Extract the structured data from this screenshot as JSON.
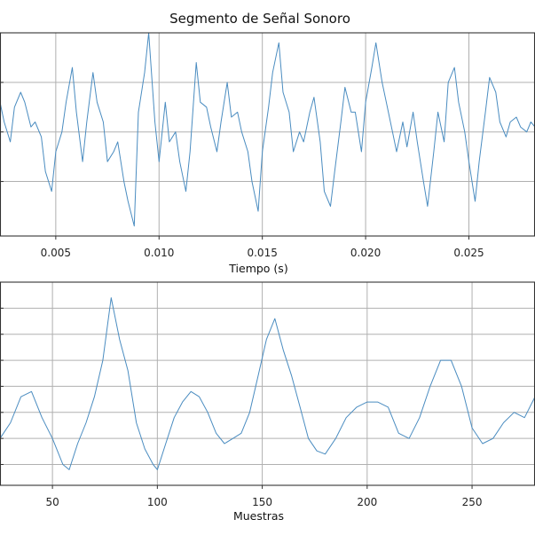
{
  "figure": {
    "title": "Segmento de Señal Sonoro",
    "accent_color": "#4a8cc0"
  },
  "chart_data": [
    {
      "type": "line",
      "title": "Segmento de Señal Sonoro",
      "xlabel": "Tiempo (s)",
      "ylabel": "",
      "xlim": [
        0.0023,
        0.0282
      ],
      "ylim": [
        -1.05,
        1.0
      ],
      "xticks": [
        0.005,
        0.01,
        0.015,
        0.02,
        0.025
      ],
      "xtick_labels": [
        "0.005",
        "0.010",
        "0.015",
        "0.020",
        "0.025"
      ],
      "yticks": [
        -0.5,
        0.0,
        0.5
      ],
      "grid": true,
      "series": [
        {
          "color": "#4a8cc0",
          "x": [
            0.0023,
            0.0025,
            0.0028,
            0.003,
            0.0033,
            0.0035,
            0.0038,
            0.004,
            0.0043,
            0.0045,
            0.0048,
            0.005,
            0.0053,
            0.0055,
            0.0058,
            0.006,
            0.0063,
            0.0065,
            0.0068,
            0.007,
            0.0073,
            0.0075,
            0.0078,
            0.008,
            0.0083,
            0.0085,
            0.0088,
            0.009,
            0.0093,
            0.0095,
            0.0098,
            0.01,
            0.0103,
            0.0105,
            0.0108,
            0.011,
            0.0113,
            0.0115,
            0.0118,
            0.012,
            0.0123,
            0.0125,
            0.0128,
            0.013,
            0.0133,
            0.0135,
            0.0138,
            0.014,
            0.0143,
            0.0145,
            0.0148,
            0.015,
            0.0153,
            0.0155,
            0.0158,
            0.016,
            0.0163,
            0.0165,
            0.0168,
            0.017,
            0.0173,
            0.0175,
            0.0178,
            0.018,
            0.0183,
            0.0185,
            0.0188,
            0.019,
            0.0193,
            0.0195,
            0.0198,
            0.02,
            0.0203,
            0.0205,
            0.0208,
            0.021,
            0.0213,
            0.0215,
            0.0218,
            0.022,
            0.0223,
            0.0225,
            0.0228,
            0.023,
            0.0233,
            0.0235,
            0.0238,
            0.024,
            0.0243,
            0.0245,
            0.0248,
            0.025,
            0.0253,
            0.0255,
            0.0258,
            0.026,
            0.0263,
            0.0265,
            0.0268,
            0.027,
            0.0273,
            0.0275,
            0.0278,
            0.028,
            0.0282
          ],
          "y": [
            0.3,
            0.1,
            -0.1,
            0.25,
            0.4,
            0.3,
            0.05,
            0.1,
            -0.05,
            -0.4,
            -0.6,
            -0.2,
            0.0,
            0.3,
            0.65,
            0.2,
            -0.3,
            0.1,
            0.6,
            0.3,
            0.1,
            -0.3,
            -0.2,
            -0.1,
            -0.5,
            -0.7,
            -0.95,
            0.2,
            0.6,
            1.0,
            0.1,
            -0.3,
            0.3,
            -0.1,
            0.0,
            -0.3,
            -0.6,
            -0.2,
            0.7,
            0.3,
            0.25,
            0.05,
            -0.2,
            0.1,
            0.5,
            0.15,
            0.2,
            0.0,
            -0.2,
            -0.5,
            -0.8,
            -0.2,
            0.25,
            0.6,
            0.9,
            0.4,
            0.2,
            -0.2,
            0.0,
            -0.1,
            0.2,
            0.35,
            -0.1,
            -0.6,
            -0.75,
            -0.4,
            0.1,
            0.45,
            0.2,
            0.2,
            -0.2,
            0.3,
            0.65,
            0.9,
            0.5,
            0.3,
            0.0,
            -0.2,
            0.1,
            -0.15,
            0.2,
            -0.1,
            -0.5,
            -0.75,
            -0.2,
            0.2,
            -0.1,
            0.5,
            0.65,
            0.3,
            0.0,
            -0.3,
            -0.7,
            -0.3,
            0.2,
            0.55,
            0.4,
            0.1,
            -0.05,
            0.1,
            0.15,
            0.05,
            0.0,
            0.1,
            0.05
          ]
        }
      ]
    },
    {
      "type": "line",
      "title": "",
      "xlabel": "Muestras",
      "ylabel": "",
      "xlim": [
        25,
        280
      ],
      "ylim": [
        -0.95,
        1.0
      ],
      "xticks": [
        50,
        100,
        150,
        200,
        250
      ],
      "xtick_labels": [
        "50",
        "100",
        "150",
        "200",
        "250"
      ],
      "yticks": [
        -0.75,
        -0.5,
        -0.25,
        0.0,
        0.25,
        0.5,
        0.75
      ],
      "grid": true,
      "series": [
        {
          "color": "#4a8cc0",
          "x": [
            25,
            30,
            35,
            40,
            45,
            50,
            55,
            58,
            62,
            66,
            70,
            74,
            78,
            82,
            86,
            90,
            94,
            98,
            100,
            104,
            108,
            112,
            116,
            120,
            124,
            128,
            132,
            136,
            140,
            144,
            148,
            152,
            156,
            160,
            164,
            168,
            172,
            176,
            180,
            185,
            190,
            195,
            200,
            205,
            210,
            215,
            220,
            225,
            230,
            235,
            240,
            245,
            250,
            255,
            260,
            265,
            270,
            275,
            280
          ],
          "y": [
            -0.5,
            -0.35,
            -0.1,
            -0.05,
            -0.3,
            -0.5,
            -0.75,
            -0.8,
            -0.55,
            -0.35,
            -0.1,
            0.25,
            0.85,
            0.45,
            0.15,
            -0.35,
            -0.6,
            -0.75,
            -0.8,
            -0.55,
            -0.3,
            -0.15,
            -0.05,
            -0.1,
            -0.25,
            -0.45,
            -0.55,
            -0.5,
            -0.45,
            -0.25,
            0.1,
            0.45,
            0.65,
            0.35,
            0.1,
            -0.2,
            -0.5,
            -0.62,
            -0.65,
            -0.5,
            -0.3,
            -0.2,
            -0.15,
            -0.15,
            -0.2,
            -0.45,
            -0.5,
            -0.3,
            0.0,
            0.25,
            0.25,
            0.0,
            -0.4,
            -0.55,
            -0.5,
            -0.35,
            -0.25,
            -0.3,
            -0.1
          ]
        }
      ]
    }
  ]
}
